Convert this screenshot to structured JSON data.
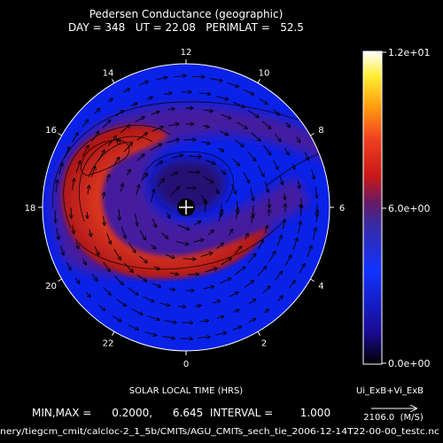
{
  "header": {
    "title": "Pedersen Conductance (geographic)",
    "subtitle": "DAY = 348   UT = 22.08   PERIMLAT =   52.5"
  },
  "polar": {
    "hour_labels": [
      {
        "hour": 12,
        "label": "12"
      },
      {
        "hour": 14,
        "label": "14"
      },
      {
        "hour": 10,
        "label": "10"
      },
      {
        "hour": 16,
        "label": "16"
      },
      {
        "hour": 8,
        "label": "8"
      },
      {
        "hour": 18,
        "label": "18"
      },
      {
        "hour": 6,
        "label": "6"
      },
      {
        "hour": 20,
        "label": "20"
      },
      {
        "hour": 4,
        "label": "4"
      },
      {
        "hour": 22,
        "label": "22"
      },
      {
        "hour": 2,
        "label": "2"
      },
      {
        "hour": 0,
        "label": "0"
      }
    ],
    "xlabel": "SOLAR LOCAL TIME (HRS)",
    "contour_label": "6"
  },
  "colorbar": {
    "max_label": "1.2e+01",
    "mid_label": "6.0e+00",
    "min_label": "0.0e+00"
  },
  "vector_legend": {
    "label": "Ui_ExB+Vi_ExB",
    "value_label": "2106.0  (M/S)"
  },
  "footer": {
    "minmax": "MIN,MAX =      0.2000,      6.645  INTERVAL =        1.000",
    "path": "nery/tiegcm_cmit/calcloc-2_1_5b/CMITs/AGU_CMITs_sech_tie_2006-12-14T22-00-00_testc.nc"
  },
  "chart_data": {
    "type": "heatmap",
    "projection": "polar",
    "title": "Pedersen Conductance (geographic)",
    "subtitle": "DAY = 348   UT = 22.08   PERIMLAT =   52.5",
    "xlabel": "SOLAR LOCAL TIME (HRS)",
    "theta_ticks": [
      0,
      2,
      4,
      6,
      8,
      10,
      12,
      14,
      16,
      18,
      20,
      22
    ],
    "colorbar_range": [
      0.0,
      12.0
    ],
    "min": 0.2,
    "max": 6.645,
    "interval": 1.0,
    "perimeter_latitude": 52.5,
    "day": 348,
    "ut": 22.08,
    "vector_scale": 2106.0,
    "vector_units": "M/S",
    "colors": {
      "low": "#0a22e8",
      "mid": "#5a1a70",
      "high": "#e5421f",
      "peak": "#ffffff"
    }
  }
}
